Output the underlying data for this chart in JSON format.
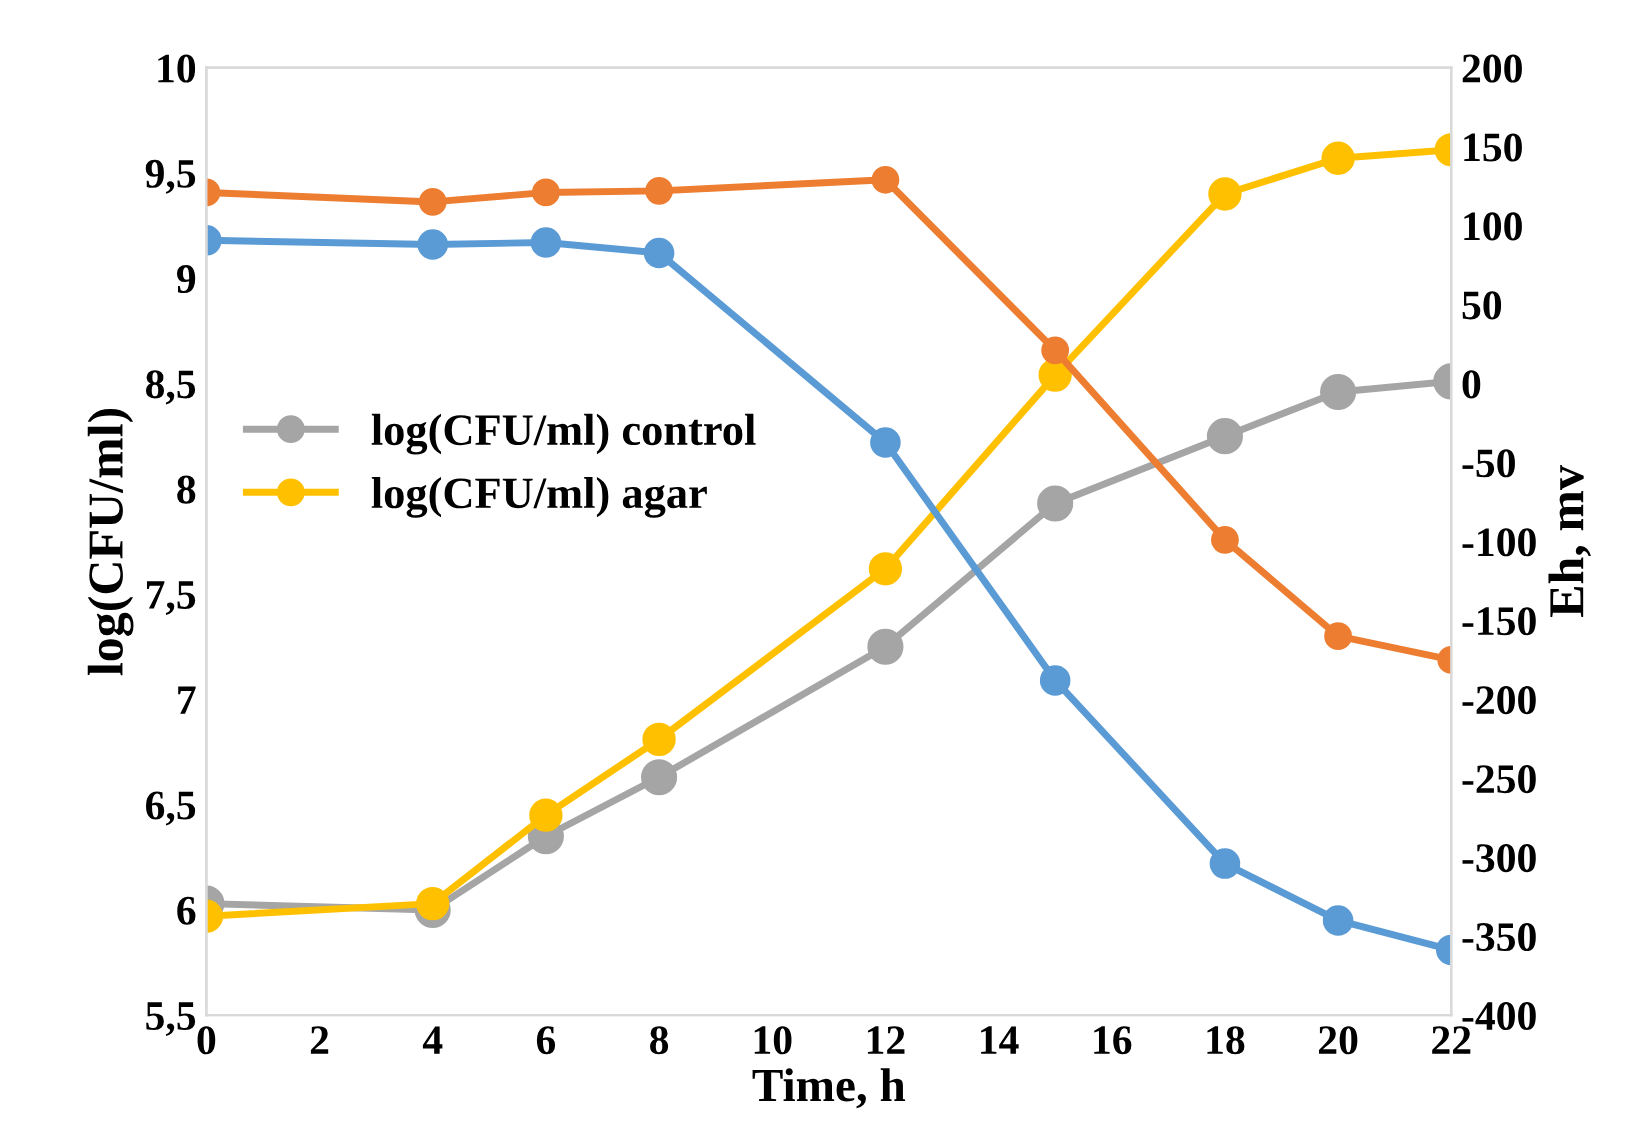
{
  "chart_data": {
    "type": "line",
    "xlabel": "Time, h",
    "ylabel": "log(CFU/ml)",
    "y2label": "Eh, mv",
    "x": [
      0,
      4,
      6,
      8,
      12,
      15,
      18,
      20,
      22
    ],
    "series": [
      {
        "name": "log(CFU/ml) control",
        "color": "#a5a5a5",
        "values": [
          6.03,
          6.0,
          6.35,
          6.63,
          7.25,
          7.93,
          8.25,
          8.46,
          8.51
        ]
      },
      {
        "name": "log(CFU/ml) agar",
        "color": "#ffc000",
        "values": [
          5.97,
          6.03,
          6.45,
          6.81,
          7.62,
          8.54,
          9.4,
          9.57,
          9.61
        ]
      },
      {
        "color": "#5b9bd5",
        "values": [
          9.18,
          9.16,
          9.17,
          9.12,
          8.22,
          7.09,
          6.22,
          5.95,
          5.81
        ]
      },
      {
        "color": "#ed7d31",
        "axis": "y2",
        "values": [
          121,
          115,
          121,
          122,
          129,
          21,
          -99,
          -160,
          -175
        ]
      }
    ],
    "xlim": [
      0,
      22
    ],
    "xticks": [
      0,
      2,
      4,
      6,
      8,
      10,
      12,
      14,
      16,
      18,
      20,
      22
    ],
    "ylim": [
      5.5,
      10
    ],
    "yticks": [
      {
        "value": 5.5,
        "label": "5,5"
      },
      6,
      {
        "value": 6.5,
        "label": "6,5"
      },
      7,
      {
        "value": 7.5,
        "label": "7,5"
      },
      8,
      {
        "value": 8.5,
        "label": "8,5"
      },
      9,
      {
        "value": 9.5,
        "label": "9,5"
      },
      10
    ],
    "y2lim": [
      -400,
      200
    ],
    "y2ticks": [
      -400,
      -350,
      -300,
      -250,
      -200,
      -150,
      -100,
      -50,
      0,
      50,
      100,
      150,
      200
    ],
    "marker": "circle",
    "line_style": "solid",
    "grid": false,
    "legend": "left"
  }
}
